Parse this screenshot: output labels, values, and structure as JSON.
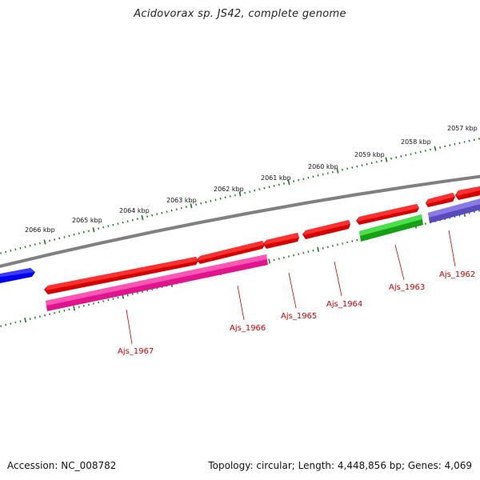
{
  "title": "Acidovorax sp. JS42, complete genome",
  "footer": {
    "accession": "Accession: NC_008782",
    "summary": "Topology: circular; Length: 4,448,856 bp; Genes: 4,069"
  },
  "ruler_labels": [
    "2066 kbp",
    "2065 kbp",
    "2064 kbp",
    "2063 kbp",
    "2062 kbp",
    "2061 kbp",
    "2060 kbp",
    "2059 kbp",
    "2058 kbp",
    "2057 kbp"
  ],
  "gene_labels": [
    "Ajs_1967",
    "Ajs_1966",
    "Ajs_1965",
    "Ajs_1964",
    "Ajs_1963",
    "Ajs_1962"
  ],
  "colors": {
    "backbone": "#808080",
    "ruler": "#1a7a1a",
    "gene_red": "#e00000",
    "gene_magenta": "#f0209a",
    "gene_green": "#22bb22",
    "gene_purple": "#6a5acd",
    "gene_blue": "#0000ee",
    "label_red": "#cc0000"
  }
}
